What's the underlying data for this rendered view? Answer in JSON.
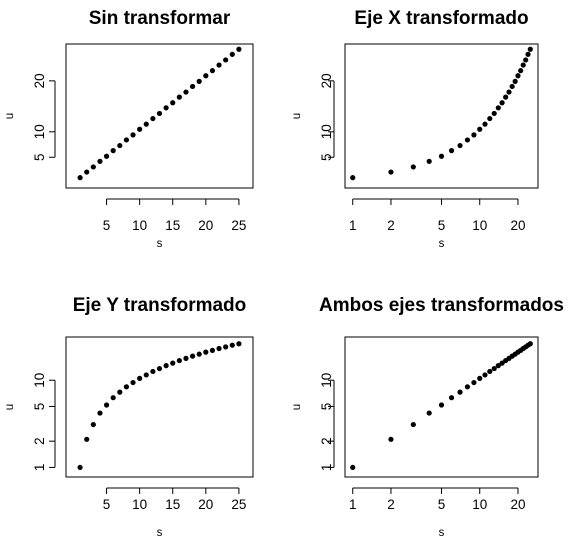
{
  "chart_data": [
    {
      "type": "scatter",
      "title": "Sin transformar",
      "xlabel": "s",
      "ylabel": "u",
      "xscale": "linear",
      "yscale": "linear",
      "xlim": [
        0,
        26
      ],
      "ylim": [
        0.1,
        26.1
      ],
      "xticks": [
        5,
        10,
        15,
        20,
        25
      ],
      "yticks": [
        5,
        10,
        20
      ],
      "series": [
        {
          "x": [
            1,
            2,
            3,
            4,
            5,
            6,
            7,
            8,
            9,
            10,
            11,
            12,
            13,
            14,
            15,
            16,
            17,
            18,
            19,
            20,
            21,
            22,
            23,
            24,
            25
          ],
          "y": [
            1.0,
            2.1,
            3.1,
            4.2,
            5.2,
            6.3,
            7.3,
            8.4,
            9.4,
            10.5,
            11.5,
            12.6,
            13.6,
            14.7,
            15.7,
            16.8,
            17.8,
            18.9,
            19.9,
            21.0,
            22.0,
            23.1,
            24.1,
            25.2,
            26.2
          ]
        }
      ]
    },
    {
      "type": "scatter",
      "title": "Eje X transformado",
      "xlabel": "s",
      "ylabel": "u",
      "xscale": "log",
      "yscale": "linear",
      "xlim": [
        1,
        25
      ],
      "ylim": [
        0.1,
        26.1
      ],
      "xticks": [
        1,
        2,
        5,
        10,
        20
      ],
      "yticks": [
        5,
        10,
        20
      ],
      "series": [
        {
          "x": [
            1,
            2,
            3,
            4,
            5,
            6,
            7,
            8,
            9,
            10,
            11,
            12,
            13,
            14,
            15,
            16,
            17,
            18,
            19,
            20,
            21,
            22,
            23,
            24,
            25
          ],
          "y": [
            1.0,
            2.1,
            3.1,
            4.2,
            5.2,
            6.3,
            7.3,
            8.4,
            9.4,
            10.5,
            11.5,
            12.6,
            13.6,
            14.7,
            15.7,
            16.8,
            17.8,
            18.9,
            19.9,
            21.0,
            22.0,
            23.1,
            24.1,
            25.2,
            26.2
          ]
        }
      ]
    },
    {
      "type": "scatter",
      "title": "Eje Y transformado",
      "xlabel": "s",
      "ylabel": "u",
      "xscale": "linear",
      "yscale": "log",
      "xlim": [
        0,
        26
      ],
      "ylim": [
        0.9,
        27
      ],
      "xticks": [
        5,
        10,
        15,
        20,
        25
      ],
      "yticks": [
        1,
        2,
        5,
        10
      ],
      "series": [
        {
          "x": [
            1,
            2,
            3,
            4,
            5,
            6,
            7,
            8,
            9,
            10,
            11,
            12,
            13,
            14,
            15,
            16,
            17,
            18,
            19,
            20,
            21,
            22,
            23,
            24,
            25
          ],
          "y": [
            1.0,
            2.1,
            3.1,
            4.2,
            5.2,
            6.3,
            7.3,
            8.4,
            9.4,
            10.5,
            11.5,
            12.6,
            13.6,
            14.7,
            15.7,
            16.8,
            17.8,
            18.9,
            19.9,
            21.0,
            22.0,
            23.1,
            24.1,
            25.2,
            26.2
          ]
        }
      ]
    },
    {
      "type": "scatter",
      "title": "Ambos ejes transformados",
      "xlabel": "s",
      "ylabel": "u",
      "xscale": "log",
      "yscale": "log",
      "xlim": [
        1,
        25
      ],
      "ylim": [
        0.9,
        27
      ],
      "xticks": [
        1,
        2,
        5,
        10,
        20
      ],
      "yticks": [
        1,
        2,
        5,
        10
      ],
      "series": [
        {
          "x": [
            1,
            2,
            3,
            4,
            5,
            6,
            7,
            8,
            9,
            10,
            11,
            12,
            13,
            14,
            15,
            16,
            17,
            18,
            19,
            20,
            21,
            22,
            23,
            24,
            25
          ],
          "y": [
            1.0,
            2.1,
            3.1,
            4.2,
            5.2,
            6.3,
            7.3,
            8.4,
            9.4,
            10.5,
            11.5,
            12.6,
            13.6,
            14.7,
            15.7,
            16.8,
            17.8,
            18.9,
            19.9,
            21.0,
            22.0,
            23.1,
            24.1,
            25.2,
            26.2
          ]
        }
      ]
    }
  ]
}
